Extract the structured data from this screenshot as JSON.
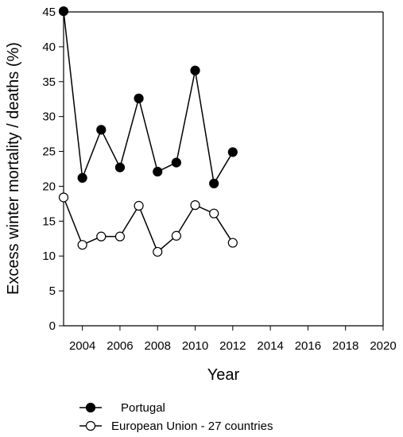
{
  "chart_data": {
    "type": "line",
    "xlabel": "Year",
    "ylabel": "Excess winter mortality / deaths (%)",
    "xlim": [
      2003,
      2020
    ],
    "ylim": [
      0,
      45
    ],
    "xticks": [
      2004,
      2006,
      2008,
      2010,
      2012,
      2014,
      2016,
      2018,
      2020
    ],
    "yticks": [
      0,
      5,
      10,
      15,
      20,
      25,
      30,
      35,
      40,
      45
    ],
    "grid": false,
    "legend_position": "bottom-left",
    "series": [
      {
        "name": "Portugal",
        "marker": "filled-circle",
        "color": "#000000",
        "x": [
          2003,
          2004,
          2005,
          2006,
          2007,
          2008,
          2009,
          2010,
          2011,
          2012
        ],
        "values": [
          45.1,
          21.2,
          28.1,
          22.7,
          32.6,
          22.1,
          23.4,
          36.6,
          20.4,
          24.9
        ]
      },
      {
        "name": "European Union - 27 countries",
        "marker": "open-circle",
        "color": "#000000",
        "x": [
          2003,
          2004,
          2005,
          2006,
          2007,
          2008,
          2009,
          2010,
          2011,
          2012
        ],
        "values": [
          18.4,
          11.6,
          12.8,
          12.8,
          17.2,
          10.6,
          12.9,
          17.3,
          16.1,
          11.9
        ]
      }
    ]
  }
}
